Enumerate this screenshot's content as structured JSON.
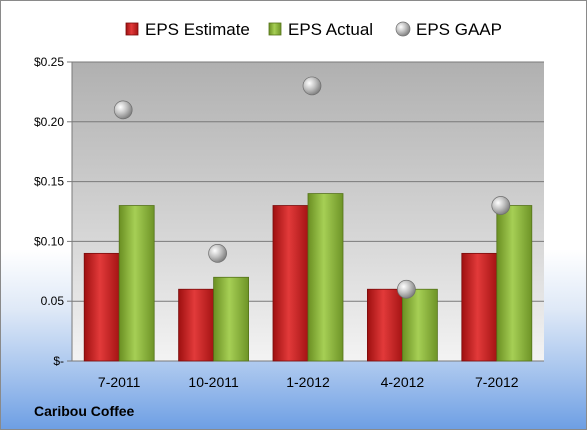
{
  "footer": {
    "company": "Caribou Coffee"
  },
  "colors": {
    "estimate": "#cc1f1f",
    "actual": "#8cb43a",
    "gaap": "#b8b8b8"
  },
  "chart_data": {
    "type": "bar",
    "categories": [
      "7-2011",
      "10-2011",
      "1-2012",
      "4-2012",
      "7-2012"
    ],
    "series": [
      {
        "name": "EPS Estimate",
        "type": "bar",
        "values": [
          0.09,
          0.06,
          0.13,
          0.06,
          0.09
        ]
      },
      {
        "name": "EPS Actual",
        "type": "bar",
        "values": [
          0.13,
          0.07,
          0.14,
          0.06,
          0.13
        ]
      },
      {
        "name": "EPS GAAP",
        "type": "scatter",
        "values": [
          0.21,
          0.09,
          0.23,
          0.06,
          0.13
        ]
      }
    ],
    "ylim": [
      0,
      0.25
    ],
    "yticks": [
      0,
      0.05,
      0.1,
      0.15,
      0.2,
      0.25
    ],
    "ytick_labels": [
      "$-",
      "0.05",
      "$0.10",
      "$0.15",
      "$0.20",
      "$0.25"
    ],
    "legend_position": "top",
    "grid": true
  }
}
